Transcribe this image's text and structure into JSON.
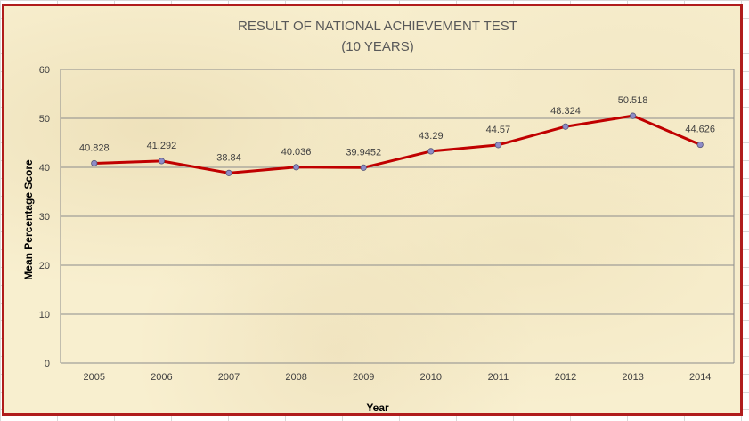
{
  "chart_data": {
    "type": "line",
    "title": "RESULT OF NATIONAL ACHIEVEMENT TEST",
    "subtitle": "(10 YEARS)",
    "xlabel": "Year",
    "ylabel": "Mean Percentage Score",
    "categories": [
      "2005",
      "2006",
      "2007",
      "2008",
      "2009",
      "2010",
      "2011",
      "2012",
      "2013",
      "2014"
    ],
    "series": [
      {
        "values": [
          40.828,
          41.292,
          38.84,
          40.036,
          39.9452,
          43.29,
          44.57,
          48.324,
          50.518,
          44.626
        ],
        "labels": [
          "40.828",
          "41.292",
          "38.84",
          "40.036",
          "39.9452",
          "43.29",
          "44.57",
          "48.324",
          "50.518",
          "44.626"
        ],
        "color": "#c00000",
        "marker_color": "#8e8cc8"
      }
    ],
    "ylim": [
      0,
      60
    ],
    "yticks": [
      0,
      10,
      20,
      30,
      40,
      50,
      60
    ],
    "grid": true,
    "legend": "none"
  },
  "colors": {
    "frame_border": "#b01c1c",
    "background": "#f8efcf",
    "gridline": "#8c8c8c"
  }
}
